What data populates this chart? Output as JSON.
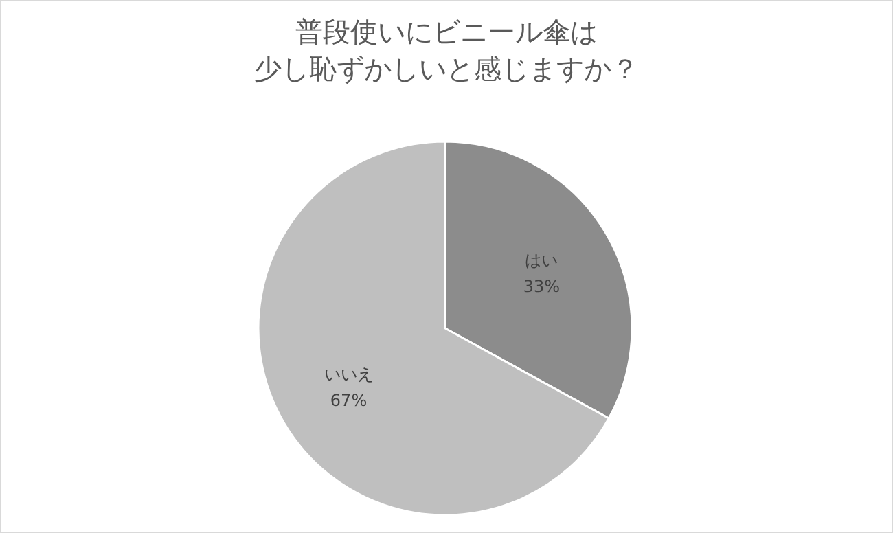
{
  "chart_data": {
    "type": "pie",
    "title": "普段使いにビニール傘は",
    "subtitle": "少し恥ずかしいと感じますか？",
    "categories": [
      "はい",
      "いいえ"
    ],
    "values": [
      33,
      67
    ],
    "colors": [
      "#8c8c8c",
      "#bfbfbf"
    ],
    "value_labels": [
      "33%",
      "67%"
    ],
    "legend": false
  }
}
